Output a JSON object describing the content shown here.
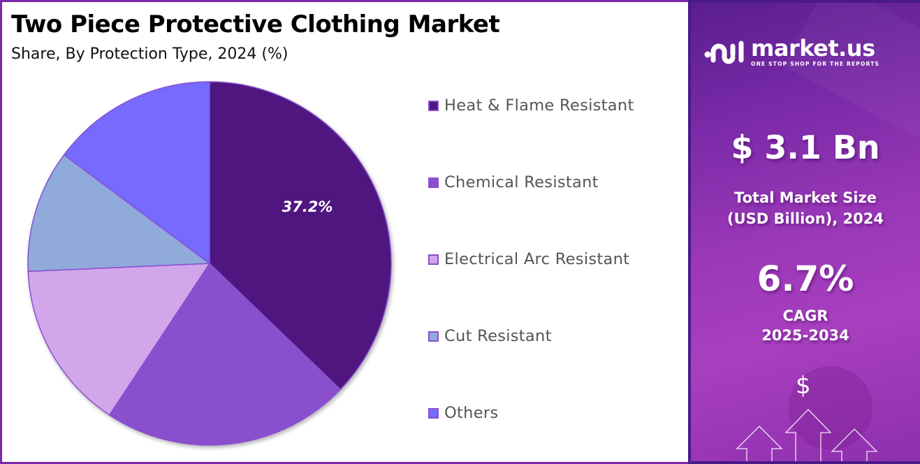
{
  "header": {
    "title": "Two Piece Protective Clothing Market",
    "subtitle": "Share, By Protection Type, 2024 (%)"
  },
  "legend": {
    "items": [
      {
        "label": "Heat & Flame Resistant",
        "color": "#4f1680"
      },
      {
        "label": "Chemical Resistant",
        "color": "#8a4fcc"
      },
      {
        "label": "Electrical Arc Resistant",
        "color": "#d2a6ea"
      },
      {
        "label": "Cut Resistant",
        "color": "#8faadb"
      },
      {
        "label": "Others",
        "color": "#766bff"
      }
    ]
  },
  "pie_label": "37.2%",
  "sidebar": {
    "logo_name": "market.us",
    "logo_tagline": "ONE STOP SHOP FOR THE REPORTS",
    "market_size_value": "$ 3.1 Bn",
    "market_size_label_line1": "Total Market Size",
    "market_size_label_line2": "(USD Billion), 2024",
    "cagr_value": "6.7%",
    "cagr_label_line1": "CAGR",
    "cagr_label_line2": "2025-2034",
    "dollar_symbol": "$"
  },
  "chart_data": {
    "type": "pie",
    "title": "Two Piece Protective Clothing Market",
    "subtitle": "Share, By Protection Type, 2024 (%)",
    "categories": [
      "Heat & Flame Resistant",
      "Chemical Resistant",
      "Electrical Arc Resistant",
      "Cut Resistant",
      "Others"
    ],
    "values": [
      37.2,
      22.1,
      15.0,
      10.9,
      14.8
    ],
    "colors": [
      "#4f1680",
      "#8a4fcc",
      "#d2a6ea",
      "#8faadb",
      "#766bff"
    ],
    "data_labels": [
      "37.2%",
      "",
      "",
      "",
      ""
    ],
    "start_angle": "12 o'clock, clockwise",
    "legend_position": "right"
  }
}
